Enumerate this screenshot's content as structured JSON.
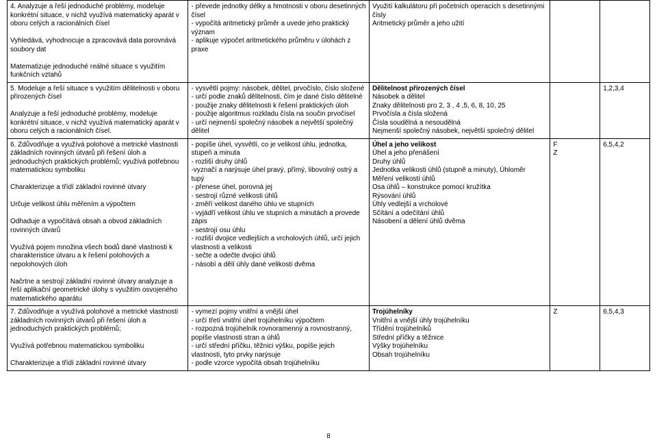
{
  "rows": [
    {
      "c1": "4. Analyzuje a řeší jednoduché problémy, modeluje konkrétní situace, v nichž využívá matematický aparát v oboru celých a racionálních čísel\n\nVyhledává, vyhodnocuje a zpracovává data porovnává soubory dat\n\nMatematizuje jednoduché reálné situace s využitím funkčních vztahů",
      "c2": "- převede jednotky délky a hmotnosti v oboru desetinných čísel\n- vypočítá aritmetický průměr a uvede jeho praktický význam\n- aplikuje výpočet aritmetického průměru v úlohách z praxe",
      "c3_bold": "",
      "c3": "Využití kalkulátoru při početních operacích s desetinnými čísly\nAritmetický průměr a jeho užití",
      "c4": "",
      "c5": ""
    },
    {
      "c1": "5. Modeluje a řeší situace s využitím dělitelnosti v oboru přirozených čísel\n\nAnalyzuje a řeší jednoduché problémy, modeluje konkrétní situace, v nichž využívá matematický aparát v oboru celých a racionálních čísel.",
      "c2": "- vysvětlí pojmy: násobek, dělitel, prvočíslo, číslo složené\n- určí podle znaků dělitelnosti, čím je dané číslo dělitelné\n- použije znaky dělitelnosti k řešení praktických úloh\n- použije algoritmus rozkladu čísla na součin prvočísel\n- určí nejmenší společný násobek a největší společný dělitel",
      "c3_bold": "Dělitelnost přirozených čísel",
      "c3": "Násobek a dělitel\nZnaky dělitelnosti pro 2, 3 , 4 ,5, 6, 8, 10, 25\nPrvočísla a čísla složená\nČísla soudělná a nesoudělná\nNejmenší společný násobek, největší společný dělitel",
      "c4": "",
      "c5": "1,2,3,4"
    },
    {
      "c1": "6. Zdůvodňuje a využívá polohové a metrické vlastnosti základních rovinných útvarů při řešení úloh a jednoduchých praktických problémů; využívá potřebnou matematickou symboliku\n\nCharakterizuje a třídí základní rovinné útvary\n\nUrčuje velikost úhlu měřením a výpočtem\n\nOdhaduje a vypočítává obsah a obvod základních rovinných útvarů\n\nVyužívá pojem množina všech bodů dané vlastnosti k charakteristice útvaru a k řešení polohových a nepolohových úloh\n\nNačrtne a sestrojí základní rovinné útvary analyzuje a řeší aplikační geometrické úlohy s využitím osvojeného matematického aparátu",
      "c2": "- popíše úhel, vysvětlí, co je velikost úhlu, jednotka, stupeň a minuta\n- rozliší druhy úhlů\n-vyznačí a narýsuje úhel pravý, přímý, libovolný ostrý a tupý\n- přenese úhel, porovná jej\n- sestrojí různé velikosti úhlů\n- změří velikost daného úhlu ve stupních\n- vyjádří velikost úhlu ve stupních a minutách a provede zápis\n- sestrojí osu úhlu\n- rozliší dvojice vedlejších a vrcholových úhlů, určí jejich vlastnosti a velikosti\n- sečte a odečte dvojici úhlů\n- násobí a dělí úhly dané velikosti dvěma",
      "c3_bold": "Úhel a jeho velikost",
      "c3": "Úhel a jeho přenášení\nDruhy úhlů\nJednotka velikosti úhlů (stupně a minuty), Úhloměr\nMěření velikostí úhlů\nOsa úhlů – konstrukce pomocí kružítka\nRýsování úhlů\nÚhly vedlejší a vrcholové\nSčítání a odečítání úhlů\nNásobení a dělení úhlů dvěma",
      "c4": "F\nZ",
      "c5": "6,5,4,2"
    },
    {
      "c1": "7. Zdůvodňuje a využívá polohové a metrické vlastnosti základních rovinných útvarů při řešení úloh a jednoduchých praktických problémů;\n\nVyužívá potřebnou matematickou symboliku\n\nCharakterizuje a třídí základní rovinné útvary",
      "c2": "- vymezí pojmy vnitřní a vnější úhel\n- určí třetí vnitřní úhel trojúhelníku výpočtem\n- rozpozná trojúhelník rovnoramenný a rovnostranný, popíše vlastnosti stran a úhlů\n- určí střední příčku, těžnici výšku, popíše jejich vlastnosti, tyto prvky narýsuje\n- podle vzorce vypočítá obsah trojúhelníku",
      "c3_bold": "Trojúhelníky",
      "c3": "Vnitřní a vnější úhly trojúhelníku\nTřídění trojúhelníků\nStřední příčky a těžnice\nVýšky trojúhelníku\nObsah trojúhelníku",
      "c4": "Z",
      "c5": "6,5,4,3"
    }
  ],
  "page_number": "8"
}
